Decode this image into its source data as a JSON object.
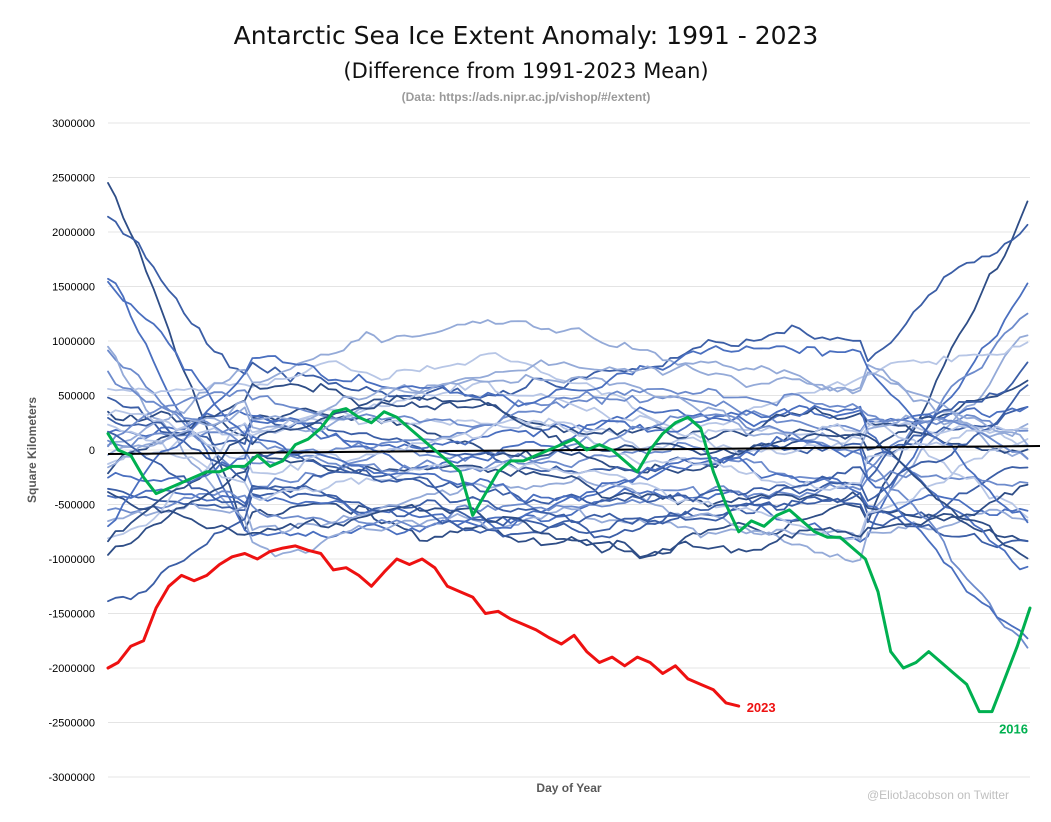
{
  "chart_data": {
    "type": "line",
    "title": "Antarctic Sea Ice Extent Anomaly: 1991 - 2023",
    "subtitle": "(Difference from 1991-2023 Mean)",
    "source": "(Data: https://ads.nipr.ac.jp/vishop/#/extent)",
    "xlabel": "Day of Year",
    "ylabel": "Square Kilometers",
    "credit": "@EliotJacobson on Twitter",
    "xlim": [
      1,
      365
    ],
    "ylim": [
      -3000000,
      3000000
    ],
    "yticks": [
      3000000,
      2500000,
      2000000,
      1500000,
      1000000,
      500000,
      0,
      -500000,
      -1000000,
      -1500000,
      -2000000,
      -2500000,
      -3000000
    ],
    "ytick_labels": [
      "3000000",
      "2500000",
      "2000000",
      "1500000",
      "1000000",
      "500000",
      "0",
      "-500000",
      "-1000000",
      "-1500000",
      "-2000000",
      "-2500000",
      "-3000000"
    ],
    "grid": true,
    "zero_line": true,
    "background_series_colors": [
      "#2e4d86",
      "#3b5ea6",
      "#4a6fbf",
      "#6d8bcc",
      "#94aad8",
      "#b7c6e6"
    ],
    "highlight_series": [
      {
        "name": "2023",
        "color": "#ee1111",
        "x": [
          1,
          5,
          10,
          15,
          20,
          25,
          30,
          35,
          40,
          45,
          50,
          55,
          60,
          65,
          70,
          75,
          80,
          85,
          90,
          95,
          100,
          105,
          110,
          115,
          120,
          125,
          130,
          135,
          140,
          145,
          150,
          155,
          160,
          165,
          170,
          175,
          180,
          185,
          190,
          195,
          200,
          205,
          210,
          215,
          220,
          225,
          230,
          235,
          240,
          245,
          250
        ],
        "values": [
          -2000000,
          -1950000,
          -1800000,
          -1750000,
          -1450000,
          -1250000,
          -1150000,
          -1200000,
          -1150000,
          -1050000,
          -980000,
          -950000,
          -1000000,
          -930000,
          -900000,
          -880000,
          -920000,
          -950000,
          -1100000,
          -1080000,
          -1150000,
          -1250000,
          -1120000,
          -1000000,
          -1050000,
          -1000000,
          -1080000,
          -1250000,
          -1300000,
          -1350000,
          -1500000,
          -1480000,
          -1550000,
          -1600000,
          -1650000,
          -1720000,
          -1780000,
          -1700000,
          -1850000,
          -1950000,
          -1900000,
          -1980000,
          -1900000,
          -1950000,
          -2050000,
          -1980000,
          -2100000,
          -2150000,
          -2200000,
          -2320000,
          -2350000
        ]
      },
      {
        "name": "2016",
        "color": "#00b050",
        "x": [
          1,
          5,
          10,
          15,
          20,
          25,
          30,
          35,
          40,
          45,
          50,
          55,
          60,
          65,
          70,
          75,
          80,
          85,
          90,
          95,
          100,
          105,
          110,
          115,
          120,
          125,
          130,
          135,
          140,
          145,
          150,
          155,
          160,
          165,
          170,
          175,
          180,
          185,
          190,
          195,
          200,
          205,
          210,
          215,
          220,
          225,
          230,
          235,
          240,
          245,
          250,
          255,
          260,
          265,
          270,
          275,
          280,
          285,
          290,
          295,
          300,
          305,
          310,
          315,
          320,
          325,
          330,
          335,
          340,
          345,
          350,
          355,
          360,
          365
        ],
        "values": [
          150000,
          0,
          -50000,
          -250000,
          -400000,
          -350000,
          -300000,
          -250000,
          -200000,
          -200000,
          -150000,
          -150000,
          -50000,
          -150000,
          -100000,
          50000,
          100000,
          200000,
          350000,
          380000,
          300000,
          250000,
          350000,
          300000,
          200000,
          100000,
          0,
          -100000,
          -200000,
          -600000,
          -400000,
          -200000,
          -100000,
          -100000,
          -50000,
          0,
          50000,
          100000,
          0,
          50000,
          0,
          -100000,
          -200000,
          0,
          150000,
          250000,
          300000,
          200000,
          -200000,
          -500000,
          -750000,
          -650000,
          -700000,
          -600000,
          -550000,
          -650000,
          -750000,
          -800000,
          -800000,
          -900000,
          -1000000,
          -1300000,
          -1850000,
          -2000000,
          -1950000,
          -1850000,
          -1950000,
          -2050000,
          -2150000,
          -2400000,
          -2400000,
          -2100000,
          -1800000,
          -1450000
        ]
      }
    ]
  }
}
